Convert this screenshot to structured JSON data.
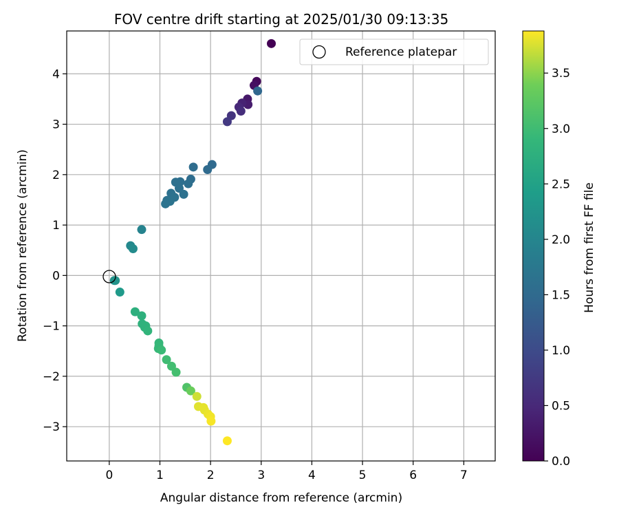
{
  "chart_data": {
    "type": "scatter",
    "title": "FOV centre drift starting at 2025/01/30 09:13:35",
    "xlabel": "Angular distance from reference (arcmin)",
    "ylabel": "Rotation from reference (arcmin)",
    "xlim": [
      -0.84,
      7.62
    ],
    "ylim": [
      -3.68,
      4.85
    ],
    "xticks": [
      0,
      1,
      2,
      3,
      4,
      5,
      6,
      7
    ],
    "yticks": [
      -3,
      -2,
      -1,
      0,
      1,
      2,
      3,
      4
    ],
    "grid": true,
    "legend": {
      "placement": "top-right",
      "entries": [
        "Reference platepar"
      ]
    },
    "colorbar": {
      "label": "Hours from first FF file",
      "range": [
        0.0,
        3.88
      ],
      "ticks": [
        0.0,
        0.5,
        1.0,
        1.5,
        2.0,
        2.5,
        3.0,
        3.5
      ],
      "ticklabels": [
        "0.0",
        "0.5",
        "1.0",
        "1.5",
        "2.0",
        "2.5",
        "3.0",
        "3.5"
      ],
      "colormap": "viridis"
    },
    "reference_point": {
      "x": 0,
      "y": 0,
      "label": "Reference platepar"
    },
    "points": [
      {
        "x": 3.2,
        "y": 4.6,
        "t": 0.0
      },
      {
        "x": 2.91,
        "y": 3.85,
        "t": 0.1
      },
      {
        "x": 2.86,
        "y": 3.77,
        "t": 0.18
      },
      {
        "x": 2.73,
        "y": 3.5,
        "t": 0.28
      },
      {
        "x": 2.74,
        "y": 3.39,
        "t": 0.35
      },
      {
        "x": 2.62,
        "y": 3.42,
        "t": 0.42
      },
      {
        "x": 2.56,
        "y": 3.34,
        "t": 0.5
      },
      {
        "x": 2.6,
        "y": 3.26,
        "t": 0.58
      },
      {
        "x": 2.41,
        "y": 3.17,
        "t": 0.66
      },
      {
        "x": 2.33,
        "y": 3.05,
        "t": 0.74
      },
      {
        "x": 2.93,
        "y": 3.66,
        "t": 1.45
      },
      {
        "x": 2.03,
        "y": 2.2,
        "t": 1.5
      },
      {
        "x": 1.94,
        "y": 2.1,
        "t": 1.52
      },
      {
        "x": 1.66,
        "y": 2.15,
        "t": 1.55
      },
      {
        "x": 1.61,
        "y": 1.91,
        "t": 1.55
      },
      {
        "x": 1.56,
        "y": 1.82,
        "t": 1.58
      },
      {
        "x": 1.4,
        "y": 1.86,
        "t": 1.58
      },
      {
        "x": 1.31,
        "y": 1.85,
        "t": 1.6
      },
      {
        "x": 1.38,
        "y": 1.73,
        "t": 1.6
      },
      {
        "x": 1.22,
        "y": 1.63,
        "t": 1.62
      },
      {
        "x": 1.47,
        "y": 1.61,
        "t": 1.62
      },
      {
        "x": 1.29,
        "y": 1.55,
        "t": 1.64
      },
      {
        "x": 1.14,
        "y": 1.49,
        "t": 1.64
      },
      {
        "x": 1.2,
        "y": 1.47,
        "t": 1.66
      },
      {
        "x": 1.11,
        "y": 1.42,
        "t": 1.66
      },
      {
        "x": 0.64,
        "y": 0.91,
        "t": 1.95
      },
      {
        "x": 0.42,
        "y": 0.59,
        "t": 2.05
      },
      {
        "x": 0.47,
        "y": 0.53,
        "t": 2.1
      },
      {
        "x": 0.1,
        "y": -0.1,
        "t": 2.22
      },
      {
        "x": 0.12,
        "y": -0.1,
        "t": 2.25
      },
      {
        "x": 0.21,
        "y": -0.33,
        "t": 2.35
      },
      {
        "x": 0.51,
        "y": -0.72,
        "t": 2.75
      },
      {
        "x": 0.64,
        "y": -0.8,
        "t": 2.78
      },
      {
        "x": 0.65,
        "y": -0.96,
        "t": 2.8
      },
      {
        "x": 0.72,
        "y": -1.0,
        "t": 2.82
      },
      {
        "x": 0.7,
        "y": -1.03,
        "t": 2.82
      },
      {
        "x": 0.76,
        "y": -1.1,
        "t": 2.85
      },
      {
        "x": 0.98,
        "y": -1.34,
        "t": 2.9
      },
      {
        "x": 0.98,
        "y": -1.4,
        "t": 2.92
      },
      {
        "x": 0.97,
        "y": -1.45,
        "t": 2.92
      },
      {
        "x": 1.03,
        "y": -1.48,
        "t": 2.95
      },
      {
        "x": 1.13,
        "y": -1.67,
        "t": 3.0
      },
      {
        "x": 1.23,
        "y": -1.8,
        "t": 3.03
      },
      {
        "x": 1.32,
        "y": -1.92,
        "t": 3.05
      },
      {
        "x": 1.53,
        "y": -2.22,
        "t": 3.15
      },
      {
        "x": 1.61,
        "y": -2.29,
        "t": 3.35
      },
      {
        "x": 1.73,
        "y": -2.4,
        "t": 3.72
      },
      {
        "x": 1.76,
        "y": -2.6,
        "t": 3.78
      },
      {
        "x": 1.86,
        "y": -2.62,
        "t": 3.8
      },
      {
        "x": 1.88,
        "y": -2.67,
        "t": 3.8
      },
      {
        "x": 1.95,
        "y": -2.75,
        "t": 3.82
      },
      {
        "x": 2.0,
        "y": -2.8,
        "t": 3.84
      },
      {
        "x": 2.01,
        "y": -2.89,
        "t": 3.86
      },
      {
        "x": 2.33,
        "y": -3.28,
        "t": 3.88
      }
    ]
  }
}
